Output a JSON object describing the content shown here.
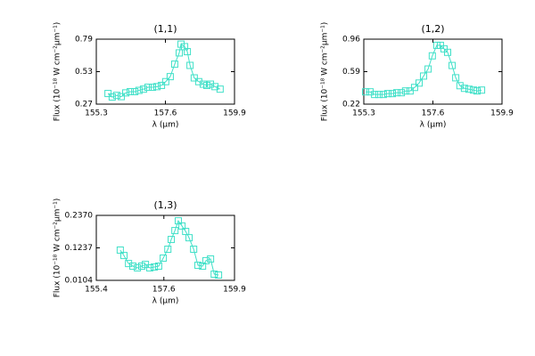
{
  "chart_data": [
    {
      "type": "line",
      "title": "(1,1)",
      "xlabel": "λ (μm)",
      "ylabel": "Flux (10⁻¹⁸ W cm⁻²μm⁻¹)",
      "xlim": [
        155.3,
        159.9
      ],
      "xticks": [
        155.3,
        157.6,
        159.9
      ],
      "ylim": [
        0.27,
        0.79
      ],
      "yticks": [
        0.27,
        0.53,
        0.79
      ],
      "series": [
        {
          "color": "#40e0c8",
          "x": [
            155.69,
            155.83,
            155.98,
            156.13,
            156.28,
            156.43,
            156.58,
            156.72,
            156.87,
            157.02,
            157.17,
            157.32,
            157.47,
            157.61,
            157.76,
            157.91,
            158.06,
            158.12,
            158.24,
            158.33,
            158.42,
            158.56,
            158.71,
            158.86,
            158.98,
            159.1,
            159.25,
            159.42
          ],
          "values": [
            0.355,
            0.327,
            0.34,
            0.33,
            0.36,
            0.37,
            0.37,
            0.38,
            0.39,
            0.405,
            0.405,
            0.41,
            0.42,
            0.45,
            0.49,
            0.59,
            0.68,
            0.75,
            0.73,
            0.69,
            0.58,
            0.48,
            0.45,
            0.43,
            0.42,
            0.43,
            0.41,
            0.39
          ]
        }
      ]
    },
    {
      "type": "line",
      "title": "(1,2)",
      "xlabel": "λ (μm)",
      "ylabel": "Flux (10⁻¹⁸ W cm⁻²μm⁻¹)",
      "xlim": [
        155.3,
        159.9
      ],
      "xticks": [
        155.3,
        157.6,
        159.9
      ],
      "ylim": [
        0.22,
        0.96
      ],
      "yticks": [
        0.22,
        0.59,
        0.96
      ],
      "series": [
        {
          "color": "#40e0c8",
          "x": [
            155.36,
            155.51,
            155.66,
            155.8,
            155.95,
            156.1,
            156.25,
            156.4,
            156.55,
            156.69,
            156.84,
            156.99,
            157.14,
            157.29,
            157.44,
            157.58,
            157.73,
            157.85,
            157.97,
            158.09,
            158.24,
            158.36,
            158.5,
            158.65,
            158.8,
            158.95,
            159.07,
            159.22
          ],
          "values": [
            0.36,
            0.36,
            0.33,
            0.33,
            0.33,
            0.34,
            0.34,
            0.35,
            0.35,
            0.37,
            0.37,
            0.41,
            0.46,
            0.54,
            0.62,
            0.77,
            0.89,
            0.89,
            0.85,
            0.81,
            0.66,
            0.52,
            0.43,
            0.4,
            0.39,
            0.38,
            0.37,
            0.38
          ]
        }
      ]
    },
    {
      "type": "line",
      "title": "(1,3)",
      "xlabel": "λ (μm)",
      "ylabel": "Flux (10⁻¹⁸ W cm⁻²μm⁻¹)",
      "xlim": [
        155.4,
        159.9
      ],
      "xticks": [
        155.4,
        157.6,
        159.9
      ],
      "ylim": [
        0.0104,
        0.237
      ],
      "yticks": [
        0.0104,
        {
          "value": 0.1237,
          "label": "0.1237"
        },
        {
          "value": 0.237,
          "label": "0.2370"
        }
      ],
      "series": [
        {
          "color": "#40e0c8",
          "x": [
            156.18,
            156.3,
            156.45,
            156.59,
            156.74,
            156.88,
            157.0,
            157.14,
            157.29,
            157.43,
            157.58,
            157.73,
            157.84,
            157.96,
            158.07,
            158.19,
            158.31,
            158.42,
            158.57,
            158.71,
            158.86,
            158.97,
            159.12,
            159.24,
            159.38
          ],
          "values": [
            0.116,
            0.097,
            0.069,
            0.06,
            0.054,
            0.06,
            0.066,
            0.054,
            0.057,
            0.06,
            0.088,
            0.119,
            0.153,
            0.184,
            0.218,
            0.2,
            0.181,
            0.159,
            0.119,
            0.063,
            0.06,
            0.079,
            0.085,
            0.032,
            0.029
          ]
        }
      ]
    }
  ]
}
